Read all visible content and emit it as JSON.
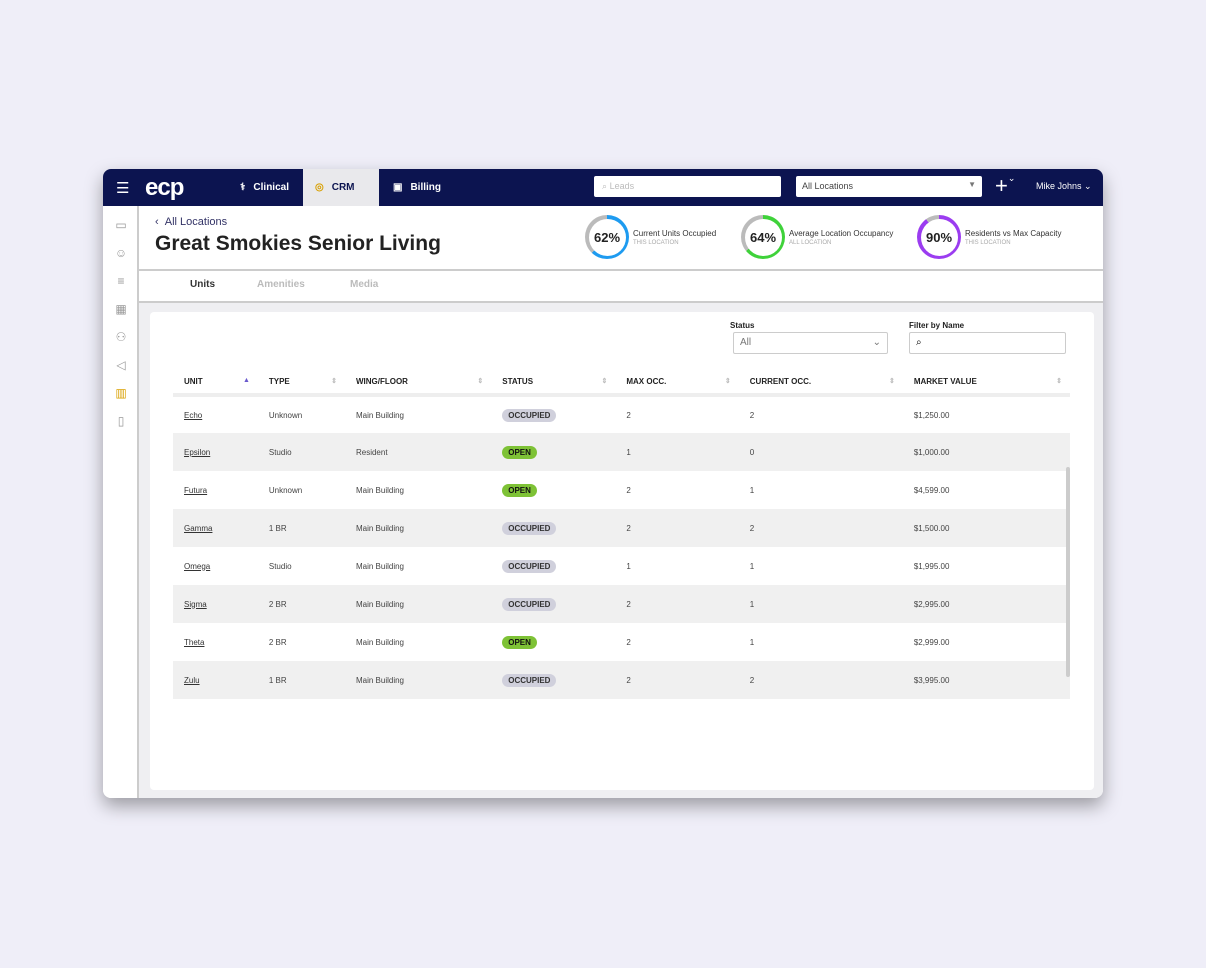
{
  "topbar": {
    "logo": "ecp",
    "tabs": [
      {
        "label": "Clinical"
      },
      {
        "label": "CRM"
      },
      {
        "label": "Billing"
      }
    ],
    "search_placeholder": "Leads",
    "location_select": "All Locations",
    "user": "Mike Johns"
  },
  "page": {
    "back_label": "All Locations",
    "title": "Great Smokies Senior Living"
  },
  "kpis": [
    {
      "value": "62%",
      "percent": 62,
      "label": "Current Units Occupied",
      "sub": "THIS LOCATION",
      "color": "#1e9bf0"
    },
    {
      "value": "64%",
      "percent": 64,
      "label": "Average Location Occupancy",
      "sub": "ALL LOCATION",
      "color": "#3fd23a"
    },
    {
      "value": "90%",
      "percent": 90,
      "label": "Residents vs Max Capacity",
      "sub": "THIS LOCATION",
      "color": "#9b3cf0"
    }
  ],
  "tabs": [
    {
      "label": "Units"
    },
    {
      "label": "Amenities"
    },
    {
      "label": "Media"
    }
  ],
  "filters": {
    "status_label": "Status",
    "status_value": "All",
    "name_label": "Filter by Name",
    "name_value": ""
  },
  "table": {
    "columns": [
      "UNIT",
      "TYPE",
      "WING/FLOOR",
      "STATUS",
      "MAX OCC.",
      "CURRENT OCC.",
      "MARKET VALUE"
    ],
    "rows": [
      [
        "Echo",
        "Unknown",
        "Main Building",
        "OCCUPIED",
        "2",
        "2",
        "$1,250.00"
      ],
      [
        "Epsilon",
        "Studio",
        "Resident",
        "OPEN",
        "1",
        "0",
        "$1,000.00"
      ],
      [
        "Futura",
        "Unknown",
        "Main Building",
        "OPEN",
        "2",
        "1",
        "$4,599.00"
      ],
      [
        "Gamma",
        "1 BR",
        "Main Building",
        "OCCUPIED",
        "2",
        "2",
        "$1,500.00"
      ],
      [
        "Omega",
        "Studio",
        "Main Building",
        "OCCUPIED",
        "1",
        "1",
        "$1,995.00"
      ],
      [
        "Sigma",
        "2 BR",
        "Main Building",
        "OCCUPIED",
        "2",
        "1",
        "$2,995.00"
      ],
      [
        "Theta",
        "2 BR",
        "Main Building",
        "OPEN",
        "2",
        "1",
        "$2,999.00"
      ],
      [
        "Zulu",
        "1 BR",
        "Main Building",
        "OCCUPIED",
        "2",
        "2",
        "$3,995.00"
      ]
    ]
  }
}
